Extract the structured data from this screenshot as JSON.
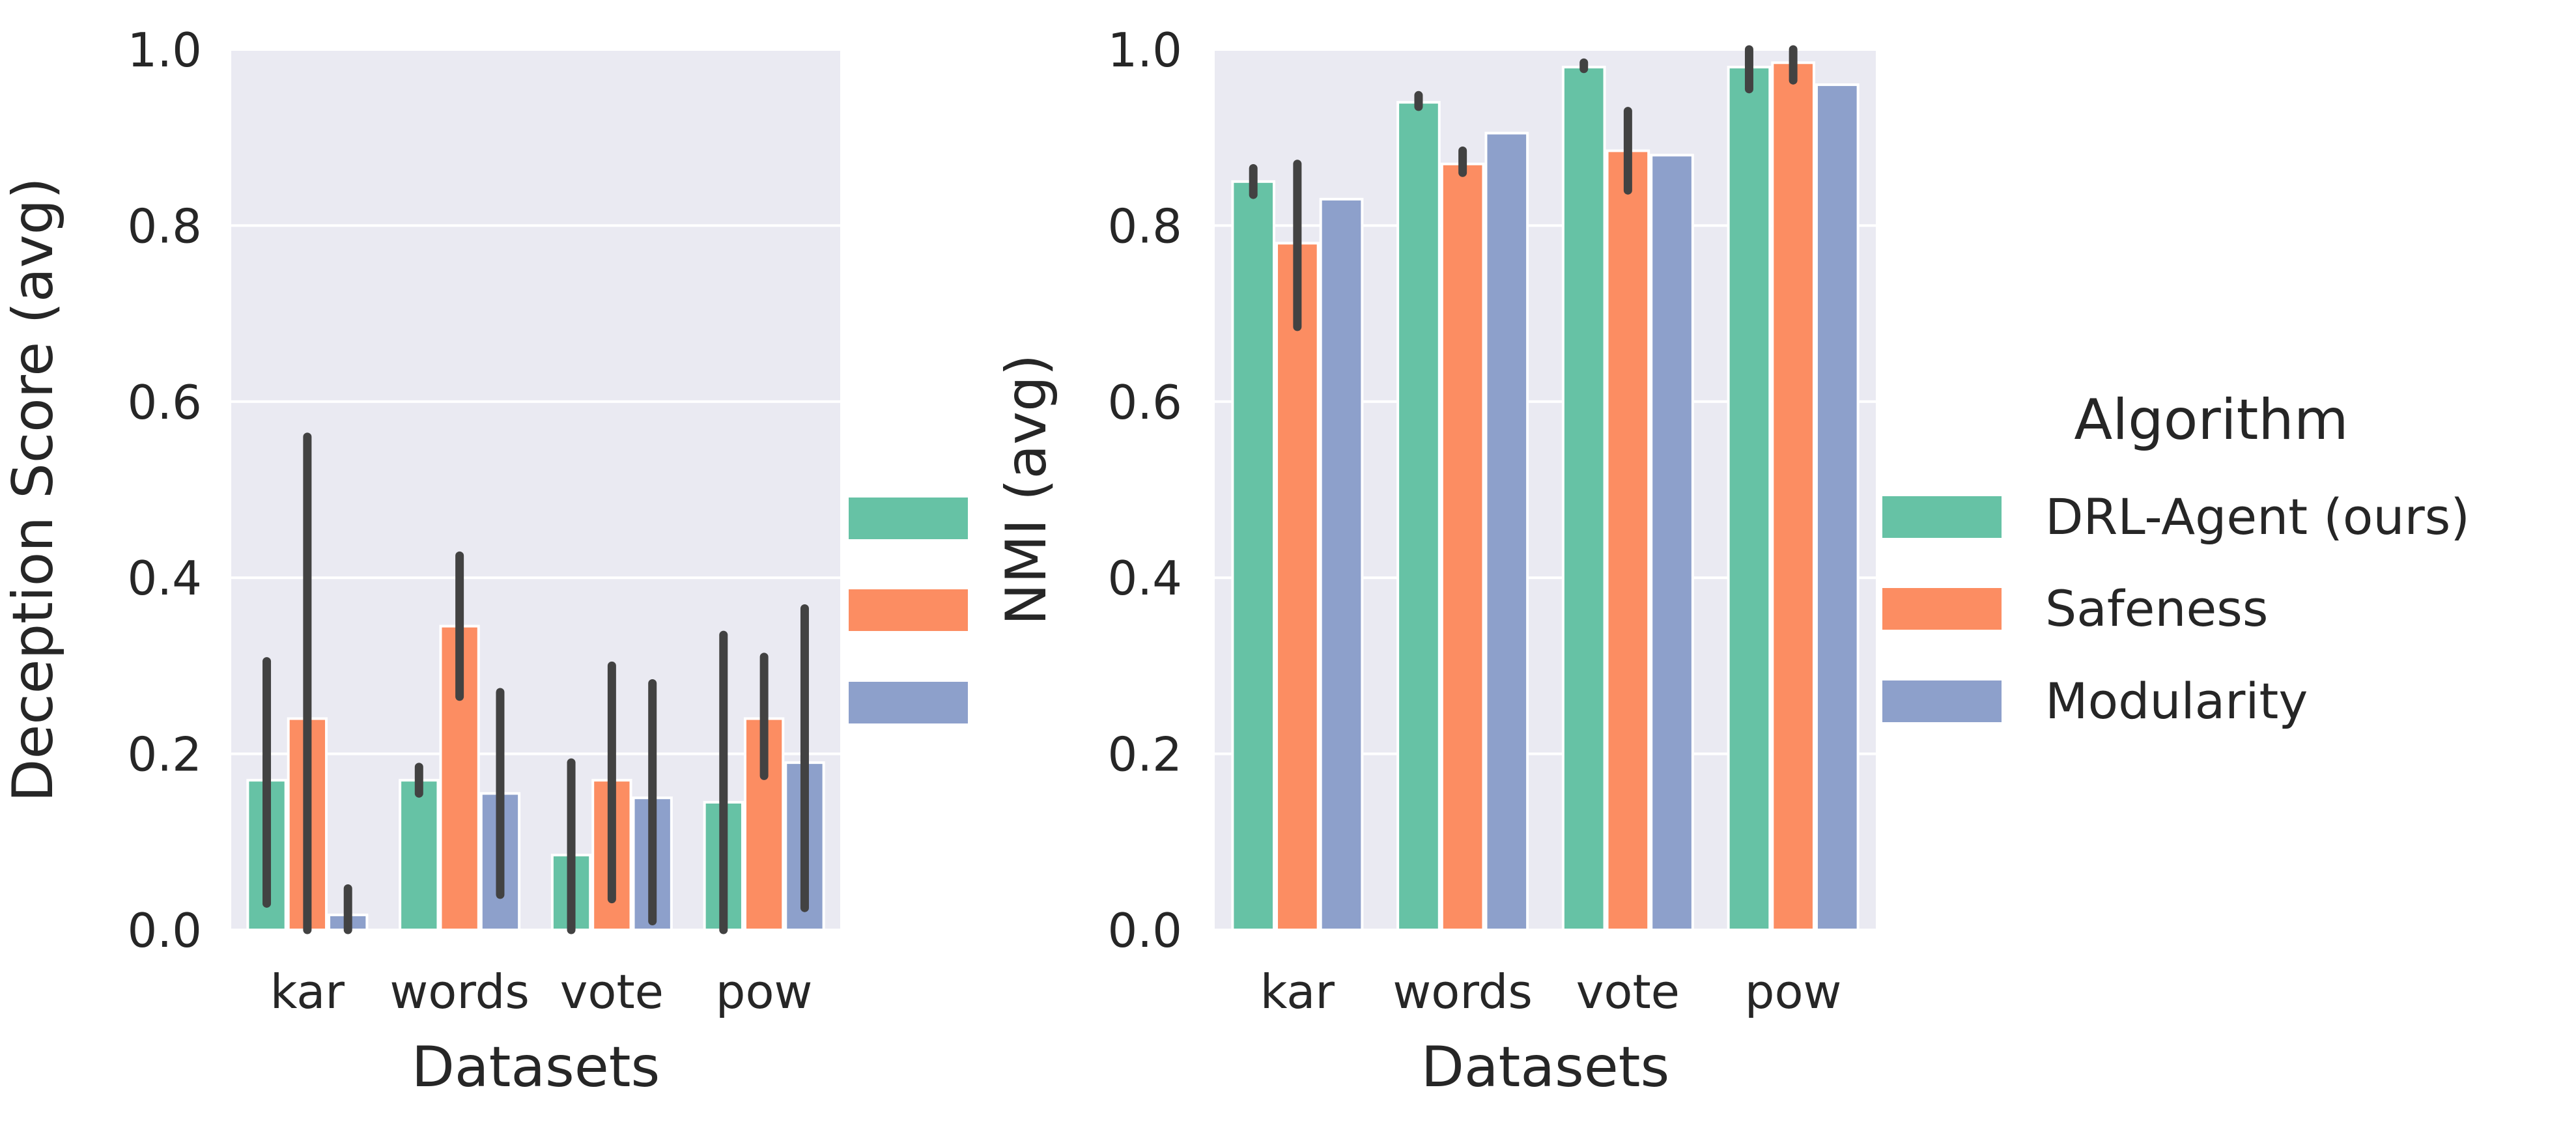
{
  "chart_data": [
    {
      "type": "bar",
      "title": "",
      "xlabel": "Datasets",
      "ylabel": "Deception Score (avg)",
      "ylim": [
        0,
        1.0
      ],
      "yticks": [
        "0.0",
        "0.2",
        "0.4",
        "0.6",
        "0.8",
        "1.0"
      ],
      "grid": true,
      "categories": [
        "kar",
        "words",
        "vote",
        "pow"
      ],
      "series": [
        {
          "name": "DRL-Agent (ours)",
          "color": "#66c2a5",
          "values": [
            0.17,
            0.17,
            0.085,
            0.145
          ],
          "err_low": [
            0.03,
            0.155,
            0.0,
            0.0
          ],
          "err_high": [
            0.305,
            0.185,
            0.19,
            0.335
          ]
        },
        {
          "name": "Safeness",
          "color": "#fc8d62",
          "values": [
            0.24,
            0.345,
            0.17,
            0.24
          ],
          "err_low": [
            0.0,
            0.265,
            0.035,
            0.175
          ],
          "err_high": [
            0.56,
            0.425,
            0.3,
            0.31
          ]
        },
        {
          "name": "Modularity",
          "color": "#8da0cb",
          "values": [
            0.017,
            0.155,
            0.15,
            0.19
          ],
          "err_low": [
            0.0,
            0.04,
            0.01,
            0.025
          ],
          "err_high": [
            0.047,
            0.27,
            0.28,
            0.365
          ]
        }
      ]
    },
    {
      "type": "bar",
      "title": "",
      "xlabel": "Datasets",
      "ylabel": "NMI (avg)",
      "ylim": [
        0,
        1.0
      ],
      "yticks": [
        "0.0",
        "0.2",
        "0.4",
        "0.6",
        "0.8",
        "1.0"
      ],
      "grid": true,
      "categories": [
        "kar",
        "words",
        "vote",
        "pow"
      ],
      "series": [
        {
          "name": "DRL-Agent (ours)",
          "color": "#66c2a5",
          "values": [
            0.85,
            0.94,
            0.98,
            0.98
          ],
          "err_low": [
            0.835,
            0.935,
            0.978,
            0.955
          ],
          "err_high": [
            0.865,
            0.948,
            0.985,
            1.0
          ]
        },
        {
          "name": "Safeness",
          "color": "#fc8d62",
          "values": [
            0.78,
            0.87,
            0.885,
            0.985
          ],
          "err_low": [
            0.685,
            0.86,
            0.84,
            0.965
          ],
          "err_high": [
            0.87,
            0.885,
            0.93,
            1.0
          ]
        },
        {
          "name": "Modularity",
          "color": "#8da0cb",
          "values": [
            0.83,
            0.905,
            0.88,
            0.96
          ],
          "err_low": [
            0.83,
            0.905,
            0.88,
            0.96
          ],
          "err_high": [
            0.83,
            0.905,
            0.88,
            0.96
          ]
        }
      ]
    }
  ],
  "legend": {
    "title": "Algorithm",
    "placement": "right",
    "entries": [
      "DRL-Agent (ours)",
      "Safeness",
      "Modularity"
    ],
    "colors": [
      "#66c2a5",
      "#fc8d62",
      "#8da0cb"
    ]
  },
  "style": {
    "plot_background": "#eaeaf2",
    "grid_color": "#ffffff",
    "error_bar_color": "#424242"
  }
}
